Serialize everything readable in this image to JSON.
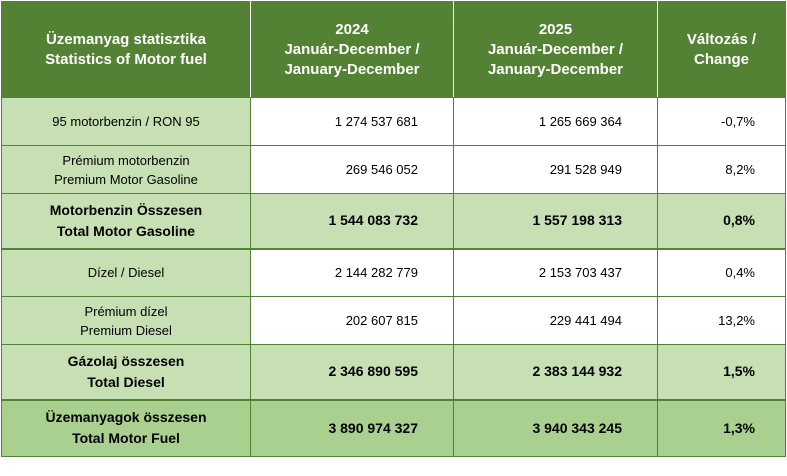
{
  "header": {
    "col1": [
      "Üzemanyag statisztika",
      "Statistics of Motor fuel"
    ],
    "col2": [
      "2024",
      "Január-December /",
      "January-December"
    ],
    "col3": [
      "2025",
      "Január-December /",
      "January-December"
    ],
    "col4": [
      "Változás /",
      "Change"
    ]
  },
  "rows": [
    {
      "label": [
        "95 motorbenzin / RON 95"
      ],
      "y2024": "1 274 537 681",
      "y2025": "1 265 669 364",
      "change": "-0,7%"
    },
    {
      "label": [
        "Prémium motorbenzin",
        "Premium Motor Gasoline"
      ],
      "y2024": "269 546 052",
      "y2025": "291 528 949",
      "change": "8,2%"
    },
    {
      "label": [
        "Motorbenzin Összesen",
        "Total Motor Gasoline"
      ],
      "y2024": "1 544 083 732",
      "y2025": "1 557 198 313",
      "change": "0,8%"
    },
    {
      "label": [
        "Dízel / Diesel"
      ],
      "y2024": "2 144 282 779",
      "y2025": "2 153 703 437",
      "change": "0,4%"
    },
    {
      "label": [
        "Prémium dízel",
        "Premium Diesel"
      ],
      "y2024": "202 607 815",
      "y2025": "229 441 494",
      "change": "13,2%"
    },
    {
      "label": [
        "Gázolaj összesen",
        "Total Diesel"
      ],
      "y2024": "2 346 890 595",
      "y2025": "2 383 144 932",
      "change": "1,5%"
    },
    {
      "label": [
        "Üzemanyagok összesen",
        "Total Motor Fuel"
      ],
      "y2024": "3 890 974 327",
      "y2025": "3 940 343 245",
      "change": "1,3%"
    }
  ],
  "colors": {
    "header_bg": "#548235",
    "label_bg": "#c6e0b4",
    "grand_total_bg": "#a9d08e"
  }
}
